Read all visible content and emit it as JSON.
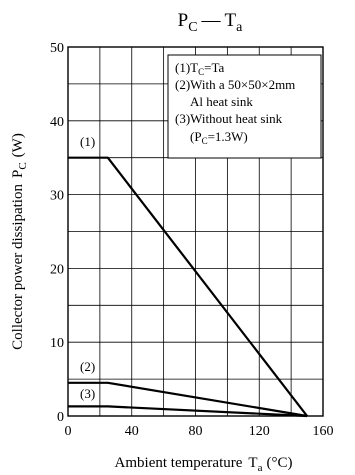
{
  "chart_data": {
    "type": "line",
    "title": {
      "main": "P",
      "main_sub": "C",
      "dash": "—",
      "var": "T",
      "var_sub": "a"
    },
    "xlabel": {
      "main": "Ambient temperature",
      "sym": "T",
      "sub": "a",
      "unit": "(°C)"
    },
    "ylabel": {
      "main": "Collector power dissipation",
      "sym": "P",
      "sub": "C",
      "unit": "(W)"
    },
    "xlim": [
      0,
      160
    ],
    "ylim": [
      0,
      50
    ],
    "xticks": [
      0,
      40,
      80,
      120,
      160
    ],
    "yticks": [
      0,
      10,
      20,
      30,
      40,
      50
    ],
    "grid": true,
    "series": [
      {
        "name": "(1)",
        "x": [
          0,
          25,
          150
        ],
        "y": [
          35,
          35,
          0
        ]
      },
      {
        "name": "(2)",
        "x": [
          0,
          25,
          150
        ],
        "y": [
          4.5,
          4.5,
          0
        ]
      },
      {
        "name": "(3)",
        "x": [
          0,
          25,
          150
        ],
        "y": [
          1.3,
          1.3,
          0
        ]
      }
    ],
    "legend": {
      "position": "top-right",
      "lines": [
        "(1)T",
        "(2)With a 50×50×2mm",
        "Al heat sink",
        "(3)Without heat sink",
        "(P",
        "=1.3W)"
      ],
      "sub_c1": "C",
      "rest1": "=Ta",
      "sub_c3": "C"
    }
  }
}
